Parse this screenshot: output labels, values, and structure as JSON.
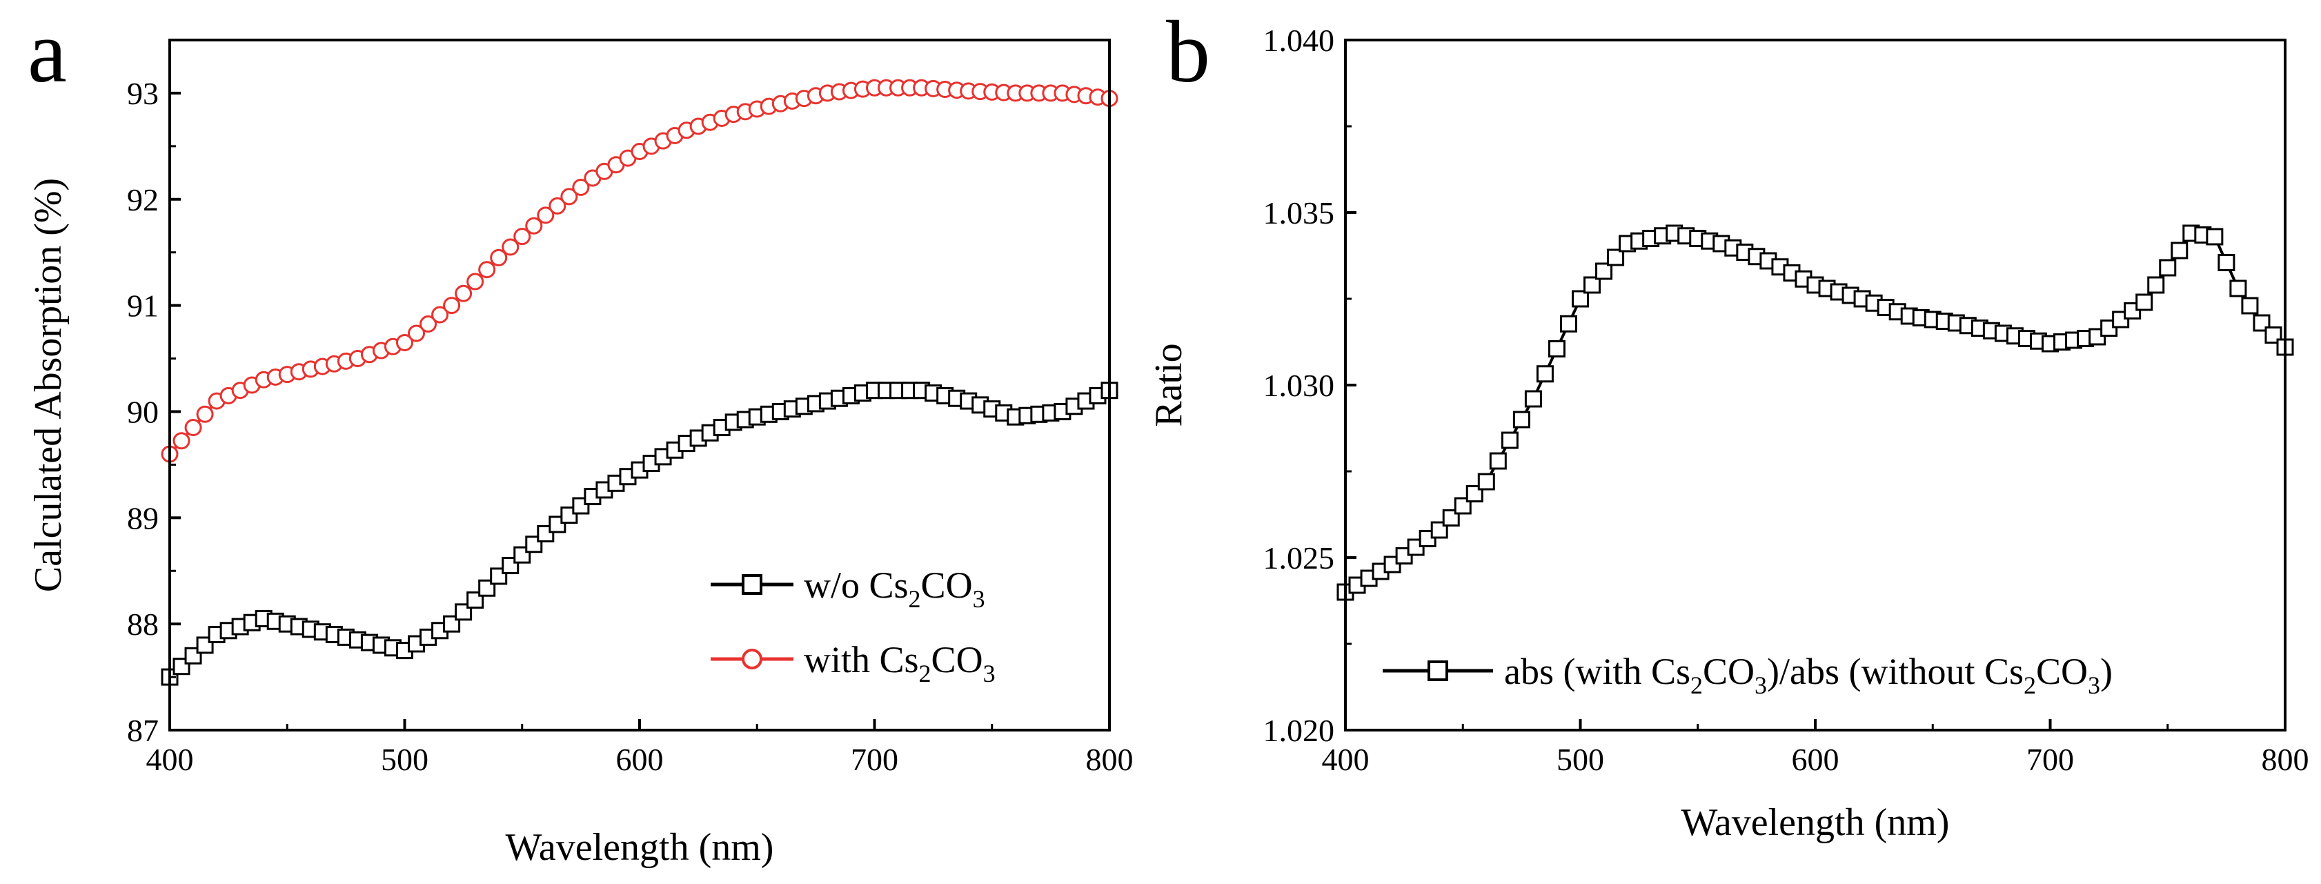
{
  "chart_data": [
    {
      "type": "line",
      "panel_letter": "a",
      "xlabel": "Wavelength (nm)",
      "ylabel": "Calculated Absorption (%)",
      "xlim": [
        400,
        800
      ],
      "ylim": [
        87,
        93.5
      ],
      "xticks": [
        "400",
        "500",
        "600",
        "700",
        "800"
      ],
      "yticks": [
        "87",
        "88",
        "89",
        "90",
        "91",
        "92",
        "93"
      ],
      "legend_position": "bottom-right",
      "series": [
        {
          "name": "w/o Cs2CO3",
          "legend": {
            "pre": "w/o Cs",
            "sub1": "2",
            "mid": "CO",
            "sub2": "3",
            "post": ""
          },
          "color": "#000000",
          "marker": "square",
          "x": [
            400,
            420,
            440,
            460,
            480,
            500,
            520,
            540,
            560,
            580,
            600,
            620,
            640,
            660,
            680,
            700,
            720,
            740,
            760,
            780,
            800
          ],
          "y": [
            87.5,
            87.9,
            88.05,
            87.95,
            87.85,
            87.75,
            88.0,
            88.45,
            88.85,
            89.2,
            89.45,
            89.7,
            89.9,
            90.0,
            90.1,
            90.2,
            90.2,
            90.1,
            89.95,
            90.0,
            90.2
          ]
        },
        {
          "name": "with Cs2CO3",
          "legend": {
            "pre": "with Cs",
            "sub1": "2",
            "mid": "CO",
            "sub2": "3",
            "post": ""
          },
          "color": "#e8322e",
          "marker": "circle",
          "x": [
            400,
            420,
            440,
            460,
            480,
            500,
            520,
            540,
            560,
            580,
            600,
            620,
            640,
            660,
            680,
            700,
            720,
            740,
            760,
            780,
            800
          ],
          "y": [
            89.6,
            90.1,
            90.3,
            90.4,
            90.5,
            90.65,
            91.0,
            91.45,
            91.85,
            92.2,
            92.45,
            92.65,
            92.8,
            92.9,
            93.0,
            93.05,
            93.05,
            93.02,
            93.0,
            93.0,
            92.95
          ]
        }
      ]
    },
    {
      "type": "line",
      "panel_letter": "b",
      "xlabel": "Wavelength (nm)",
      "ylabel": "Ratio",
      "xlim": [
        400,
        800
      ],
      "ylim": [
        1.02,
        1.04
      ],
      "xticks": [
        "400",
        "500",
        "600",
        "700",
        "800"
      ],
      "yticks": [
        "1.020",
        "1.025",
        "1.030",
        "1.035",
        "1.040"
      ],
      "legend_position": "bottom",
      "series": [
        {
          "name": "abs (with Cs2CO3)/abs (without Cs2CO3)",
          "legend": {
            "pre": "abs (with Cs",
            "sub1": "2",
            "mid": "CO",
            "sub2": "3",
            "post": ")/abs (without Cs",
            "sub3": "2",
            "mid2": "CO",
            "sub4": "3",
            "post2": ")"
          },
          "color": "#000000",
          "marker": "square",
          "x": [
            400,
            420,
            440,
            460,
            480,
            500,
            520,
            540,
            560,
            580,
            600,
            620,
            640,
            660,
            680,
            700,
            720,
            740,
            760,
            770,
            780,
            790,
            800
          ],
          "y": [
            1.024,
            1.0248,
            1.0258,
            1.0272,
            1.0296,
            1.0325,
            1.0341,
            1.0344,
            1.0341,
            1.0336,
            1.0329,
            1.0325,
            1.032,
            1.0318,
            1.0315,
            1.0312,
            1.0314,
            1.0324,
            1.0344,
            1.0343,
            1.0328,
            1.0318,
            1.0311
          ]
        }
      ]
    }
  ]
}
